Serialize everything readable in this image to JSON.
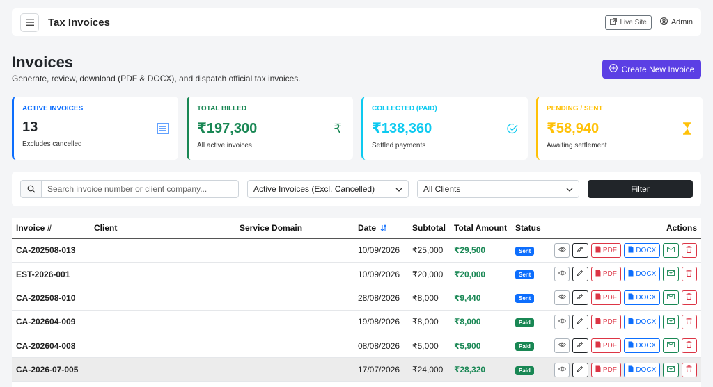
{
  "topbar": {
    "title": "Tax Invoices",
    "live_site": "Live Site",
    "admin": "Admin"
  },
  "page": {
    "title": "Invoices",
    "subtitle": "Generate, review, download (PDF & DOCX), and dispatch official tax invoices.",
    "create_button": "Create New Invoice"
  },
  "stats": [
    {
      "label": "ACTIVE INVOICES",
      "value": "13",
      "sub": "Excludes cancelled",
      "color": "#0d6efd",
      "icon": "document-list-icon"
    },
    {
      "label": "TOTAL BILLED",
      "value": "₹197,300",
      "sub": "All active invoices",
      "color": "#198754",
      "icon": "rupee-icon"
    },
    {
      "label": "COLLECTED (PAID)",
      "value": "₹138,360",
      "sub": "Settled payments",
      "color": "#0dcaf0",
      "icon": "check-circle-icon"
    },
    {
      "label": "PENDING / SENT",
      "value": "₹58,940",
      "sub": "Awaiting settlement",
      "color": "#ffc107",
      "icon": "hourglass-icon"
    }
  ],
  "filters": {
    "search_placeholder": "Search invoice number or client company...",
    "status_select": "Active Invoices (Excl. Cancelled)",
    "client_select": "All Clients",
    "filter_button": "Filter"
  },
  "table": {
    "headers": [
      "Invoice #",
      "Client",
      "Service Domain",
      "Date",
      "Subtotal",
      "Total Amount",
      "Status",
      "Actions"
    ],
    "action_labels": {
      "pdf": "PDF",
      "docx": "DOCX"
    },
    "rows": [
      {
        "invoice": "CA-202508-013",
        "client": "",
        "domain": "",
        "date": "10/09/2026",
        "subtotal": "₹25,000",
        "total": "₹29,500",
        "status": "Sent"
      },
      {
        "invoice": "EST-2026-001",
        "client": "",
        "domain": "",
        "date": "10/09/2026",
        "subtotal": "₹20,000",
        "total": "₹20,000",
        "status": "Sent"
      },
      {
        "invoice": "CA-202508-010",
        "client": "",
        "domain": "",
        "date": "28/08/2026",
        "subtotal": "₹8,000",
        "total": "₹9,440",
        "status": "Sent"
      },
      {
        "invoice": "CA-202604-009",
        "client": "",
        "domain": "",
        "date": "19/08/2026",
        "subtotal": "₹8,000",
        "total": "₹8,000",
        "status": "Paid"
      },
      {
        "invoice": "CA-202604-008",
        "client": "",
        "domain": "",
        "date": "08/08/2026",
        "subtotal": "₹5,000",
        "total": "₹5,900",
        "status": "Paid"
      },
      {
        "invoice": "CA-2026-07-005",
        "client": "",
        "domain": "",
        "date": "17/07/2026",
        "subtotal": "₹24,000",
        "total": "₹28,320",
        "status": "Paid"
      }
    ]
  }
}
